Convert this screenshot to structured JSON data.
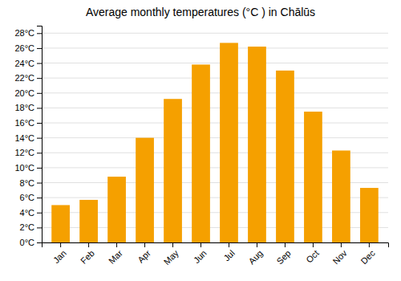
{
  "chart_data": {
    "type": "bar",
    "title": "Average monthly temperatures (°C ) in Chālūs",
    "categories": [
      "Jan",
      "Feb",
      "Mar",
      "Apr",
      "May",
      "Jun",
      "Jul",
      "Aug",
      "Sep",
      "Oct",
      "Nov",
      "Dec"
    ],
    "values": [
      5.0,
      5.7,
      8.8,
      14.0,
      19.2,
      23.8,
      26.7,
      26.2,
      23.0,
      17.5,
      12.3,
      7.3
    ],
    "color": "#F5A000",
    "ylim": [
      0,
      29
    ],
    "yticks": [
      {
        "value": 0,
        "label": "0°C"
      },
      {
        "value": 2,
        "label": "2°C"
      },
      {
        "value": 4,
        "label": "4°C"
      },
      {
        "value": 6,
        "label": "6°C"
      },
      {
        "value": 8,
        "label": "8°C"
      },
      {
        "value": 10,
        "label": "10°C"
      },
      {
        "value": 12,
        "label": "12°C"
      },
      {
        "value": 14,
        "label": "14°C"
      },
      {
        "value": 16,
        "label": "16°C"
      },
      {
        "value": 18,
        "label": "18°C"
      },
      {
        "value": 20,
        "label": "20°C"
      },
      {
        "value": 22,
        "label": "22°C"
      },
      {
        "value": 24,
        "label": "24°C"
      },
      {
        "value": 26,
        "label": "26°C"
      },
      {
        "value": 28,
        "label": "28°C"
      }
    ],
    "grid": true
  }
}
